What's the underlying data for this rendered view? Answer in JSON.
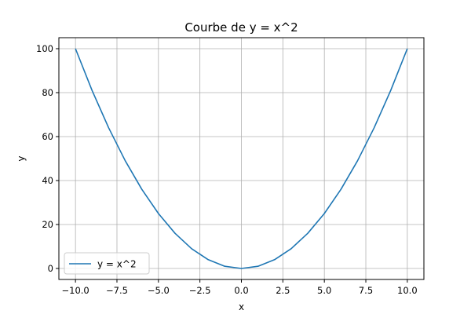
{
  "chart_data": {
    "type": "line",
    "title": "Courbe de y = x^2",
    "xlabel": "x",
    "ylabel": "y",
    "xlim": [
      -11,
      11
    ],
    "ylim": [
      -5,
      105
    ],
    "x_ticks": [
      -10,
      -7.5,
      -5,
      -2.5,
      0,
      2.5,
      5,
      7.5,
      10
    ],
    "x_tick_labels": [
      "−10.0",
      "−7.5",
      "−5.0",
      "−2.5",
      "0.0",
      "2.5",
      "5.0",
      "7.5",
      "10.0"
    ],
    "y_ticks": [
      0,
      20,
      40,
      60,
      80,
      100
    ],
    "y_tick_labels": [
      "0",
      "20",
      "40",
      "60",
      "80",
      "100"
    ],
    "grid": true,
    "legend_position": "bottom-left",
    "series": [
      {
        "name": "y = x^2",
        "color": "#1f77b4",
        "x": [
          -10,
          -9,
          -8,
          -7,
          -6,
          -5,
          -4,
          -3,
          -2,
          -1,
          0,
          1,
          2,
          3,
          4,
          5,
          6,
          7,
          8,
          9,
          10
        ],
        "y": [
          100,
          81,
          64,
          49,
          36,
          25,
          16,
          9,
          4,
          1,
          0,
          1,
          4,
          9,
          16,
          25,
          36,
          49,
          64,
          81,
          100
        ]
      }
    ]
  }
}
